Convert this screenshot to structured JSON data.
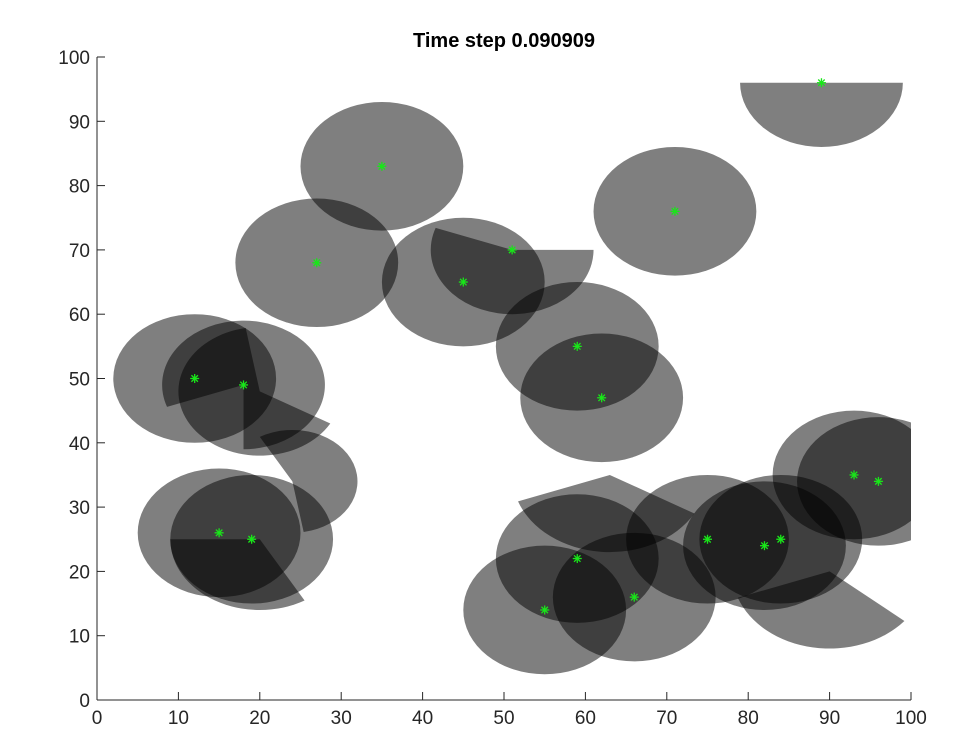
{
  "chart_data": {
    "type": "scatter",
    "title": "Time step 0.090909",
    "xlabel": "",
    "ylabel": "",
    "xlim": [
      0,
      100
    ],
    "ylim": [
      0,
      100
    ],
    "xticks": [
      0,
      10,
      20,
      30,
      40,
      50,
      60,
      70,
      80,
      90,
      100
    ],
    "yticks": [
      0,
      10,
      20,
      30,
      40,
      50,
      60,
      70,
      80,
      90,
      100
    ],
    "grid": false,
    "marker": "*",
    "marker_color": "#19e619",
    "region_color": "#000000",
    "region_opacity": 0.5,
    "points": [
      {
        "x": 12,
        "y": 50
      },
      {
        "x": 18,
        "y": 49
      },
      {
        "x": 15,
        "y": 26
      },
      {
        "x": 19,
        "y": 25
      },
      {
        "x": 27,
        "y": 68
      },
      {
        "x": 35,
        "y": 83
      },
      {
        "x": 45,
        "y": 65
      },
      {
        "x": 51,
        "y": 70
      },
      {
        "x": 59,
        "y": 55
      },
      {
        "x": 62,
        "y": 47
      },
      {
        "x": 59,
        "y": 22
      },
      {
        "x": 55,
        "y": 14
      },
      {
        "x": 66,
        "y": 16
      },
      {
        "x": 71,
        "y": 76
      },
      {
        "x": 89,
        "y": 96
      },
      {
        "x": 75,
        "y": 25
      },
      {
        "x": 82,
        "y": 24
      },
      {
        "x": 84,
        "y": 25
      },
      {
        "x": 93,
        "y": 35
      },
      {
        "x": 96,
        "y": 34
      }
    ],
    "regions": [
      {
        "cx": 12,
        "cy": 50,
        "r": 10
      },
      {
        "cx": 18,
        "cy": 49,
        "r": 10,
        "start": -90,
        "end": 200
      },
      {
        "cx": 20,
        "cy": 48,
        "r": 10,
        "start": 100,
        "end": 330
      },
      {
        "cx": 15,
        "cy": 26,
        "r": 10
      },
      {
        "cx": 19,
        "cy": 25,
        "r": 10
      },
      {
        "cx": 20,
        "cy": 25,
        "r": 11,
        "start": 180,
        "end": 300
      },
      {
        "cx": 24,
        "cy": 34,
        "r": 8,
        "start": -80,
        "end": 120
      },
      {
        "cx": 27,
        "cy": 68,
        "r": 10
      },
      {
        "cx": 35,
        "cy": 83,
        "r": 10
      },
      {
        "cx": 45,
        "cy": 65,
        "r": 10
      },
      {
        "cx": 51,
        "cy": 70,
        "r": 10,
        "start": 160,
        "end": 360
      },
      {
        "cx": 59,
        "cy": 55,
        "r": 10
      },
      {
        "cx": 62,
        "cy": 47,
        "r": 10
      },
      {
        "cx": 63,
        "cy": 35,
        "r": 12,
        "start": 200,
        "end": 330
      },
      {
        "cx": 59,
        "cy": 22,
        "r": 10
      },
      {
        "cx": 55,
        "cy": 14,
        "r": 10
      },
      {
        "cx": 66,
        "cy": 16,
        "r": 10
      },
      {
        "cx": 71,
        "cy": 76,
        "r": 10
      },
      {
        "cx": 89,
        "cy": 96,
        "r": 10,
        "start": 180,
        "end": 360
      },
      {
        "cx": 75,
        "cy": 25,
        "r": 10
      },
      {
        "cx": 82,
        "cy": 24,
        "r": 10
      },
      {
        "cx": 84,
        "cy": 25,
        "r": 10
      },
      {
        "cx": 93,
        "cy": 35,
        "r": 10
      },
      {
        "cx": 96,
        "cy": 34,
        "r": 10
      },
      {
        "cx": 90,
        "cy": 20,
        "r": 12,
        "start": 200,
        "end": 320
      }
    ]
  }
}
